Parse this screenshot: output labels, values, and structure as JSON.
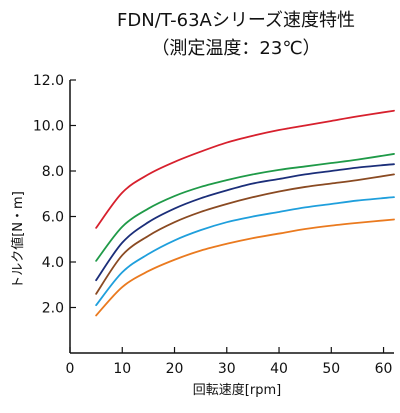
{
  "chart_data": {
    "type": "line",
    "title": "FDN/T-63Aシリーズ速度特性",
    "subtitle": "（測定温度：23℃）",
    "xlabel": "回転速度[rpm]",
    "ylabel": "トルク値[N・m]",
    "xlim": [
      0,
      62
    ],
    "ylim": [
      0,
      12
    ],
    "x_ticks": [
      0,
      10,
      20,
      30,
      40,
      50,
      60
    ],
    "x_tick_labels": [
      "0",
      "10",
      "20",
      "30",
      "40",
      "50",
      "60"
    ],
    "y_ticks": [
      2,
      4,
      6,
      8,
      10,
      12
    ],
    "y_tick_labels": [
      "2.0",
      "4.0",
      "6.0",
      "8.0",
      "10.0",
      "12.0"
    ],
    "grid": false,
    "legend": "none",
    "series": [
      {
        "color": "#d7202d",
        "x": [
          5,
          10,
          15,
          20,
          25,
          30,
          35,
          40,
          45,
          50,
          55,
          62
        ],
        "y": [
          5.5,
          7.05,
          7.85,
          8.4,
          8.85,
          9.25,
          9.55,
          9.8,
          10.0,
          10.2,
          10.4,
          10.65
        ]
      },
      {
        "color": "#1f9a48",
        "x": [
          5,
          10,
          15,
          20,
          25,
          30,
          35,
          40,
          45,
          50,
          55,
          62
        ],
        "y": [
          4.05,
          5.55,
          6.35,
          6.9,
          7.3,
          7.6,
          7.85,
          8.05,
          8.2,
          8.35,
          8.5,
          8.75
        ]
      },
      {
        "color": "#1b2e79",
        "x": [
          5,
          10,
          15,
          20,
          25,
          30,
          35,
          40,
          45,
          50,
          55,
          62
        ],
        "y": [
          3.2,
          4.85,
          5.75,
          6.35,
          6.8,
          7.15,
          7.45,
          7.65,
          7.85,
          8.0,
          8.15,
          8.3
        ]
      },
      {
        "color": "#8a4a22",
        "x": [
          5,
          10,
          15,
          20,
          25,
          30,
          35,
          40,
          45,
          50,
          55,
          62
        ],
        "y": [
          2.6,
          4.3,
          5.15,
          5.75,
          6.2,
          6.55,
          6.85,
          7.1,
          7.3,
          7.45,
          7.6,
          7.85
        ]
      },
      {
        "color": "#1f9fdc",
        "x": [
          5,
          10,
          15,
          20,
          25,
          30,
          35,
          40,
          45,
          50,
          55,
          62
        ],
        "y": [
          2.1,
          3.55,
          4.35,
          4.95,
          5.4,
          5.75,
          6.0,
          6.2,
          6.4,
          6.55,
          6.7,
          6.85
        ]
      },
      {
        "color": "#ea7a1f",
        "x": [
          5,
          10,
          15,
          20,
          25,
          30,
          35,
          40,
          45,
          50,
          55,
          62
        ],
        "y": [
          1.65,
          2.9,
          3.6,
          4.1,
          4.5,
          4.8,
          5.05,
          5.25,
          5.45,
          5.6,
          5.72,
          5.87
        ]
      }
    ]
  }
}
